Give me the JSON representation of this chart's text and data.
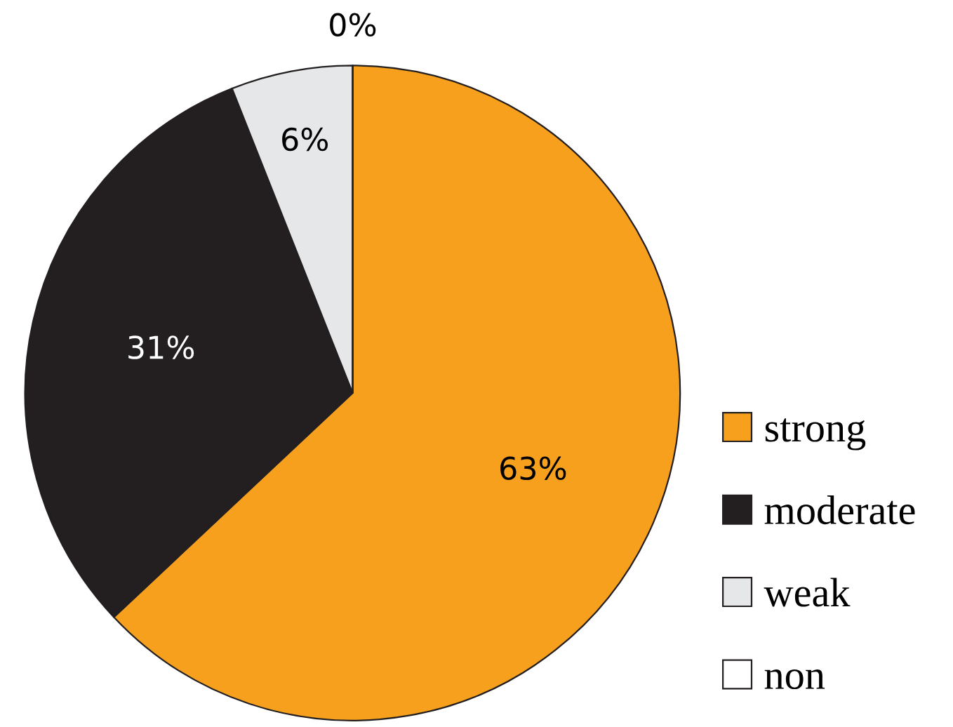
{
  "chart_data": {
    "type": "pie",
    "categories": [
      "strong",
      "moderate",
      "weak",
      "non"
    ],
    "values": [
      63,
      31,
      6,
      0
    ],
    "colors": [
      "#f7a01e",
      "#231f20",
      "#e6e7e8",
      "#ffffff"
    ],
    "value_labels": [
      "63%",
      "31%",
      "6%",
      "0%"
    ],
    "legend": "bottom right"
  }
}
